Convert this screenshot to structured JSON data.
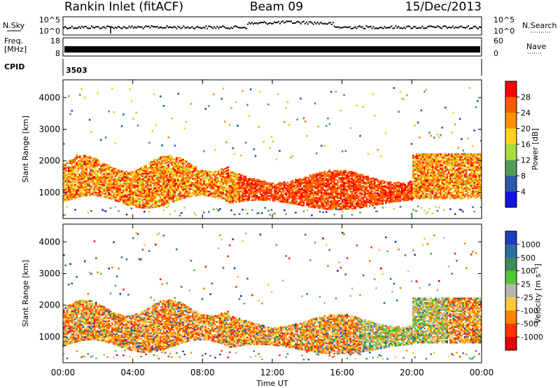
{
  "header": {
    "station": "Rankin Inlet (fitACF)",
    "beam": "Beam 09",
    "date": "15/Dec/2013"
  },
  "noise_panel": {
    "left_label": "N.Sky",
    "right_label": "N.Search",
    "right_ticks": [
      "10^5",
      "10^0"
    ],
    "left_ticks": [
      "10^5",
      "10^0"
    ]
  },
  "freq_panel": {
    "left_label_line1": "Freq.",
    "left_label_line2": "[MHz]",
    "left_ticks": [
      "18",
      "8"
    ],
    "right_ticks": [
      "60",
      "0"
    ],
    "right_label": "Nave"
  },
  "cpid": {
    "label": "CPID",
    "value": "3503"
  },
  "x_axis": {
    "title": "Time UT",
    "ticks": [
      "00:00",
      "04:00",
      "08:00",
      "12:00",
      "16:00",
      "20:00",
      "00:00"
    ]
  },
  "chart_data": [
    {
      "type": "heatmap",
      "panel": "power",
      "ylabel": "Slant Range [km]",
      "yticks": [
        1000,
        2000,
        3000,
        4000
      ],
      "ylim": [
        180,
        4560
      ],
      "xlim_hours": [
        0,
        24
      ],
      "colorbar": {
        "label": "Power [dB]",
        "ticks": [
          "28",
          "24",
          "20",
          "16",
          "12",
          "8",
          "4"
        ],
        "colors": [
          "#ff0000",
          "#ff5a00",
          "#ff9000",
          "#ffd21e",
          "#aadc3c",
          "#4f9e5a",
          "#2a5aaa",
          "#1414e6"
        ]
      }
    },
    {
      "type": "heatmap",
      "panel": "velocity",
      "ylabel": "Slant Range [km]",
      "yticks": [
        1000,
        2000,
        3000,
        4000
      ],
      "ylim": [
        180,
        4560
      ],
      "xlim_hours": [
        0,
        24
      ],
      "colorbar": {
        "label": "Velocity [m s⁻¹]",
        "ticks": [
          "1000",
          "500",
          "100",
          "25",
          "-25",
          "-100",
          "-500",
          "-1000"
        ],
        "colors": [
          "#1e3cbe",
          "#2d6ea0",
          "#3c8c5a",
          "#50c832",
          "#b4b4b4",
          "#ffc83c",
          "#ff8200",
          "#ff3200",
          "#e60000"
        ]
      }
    }
  ]
}
